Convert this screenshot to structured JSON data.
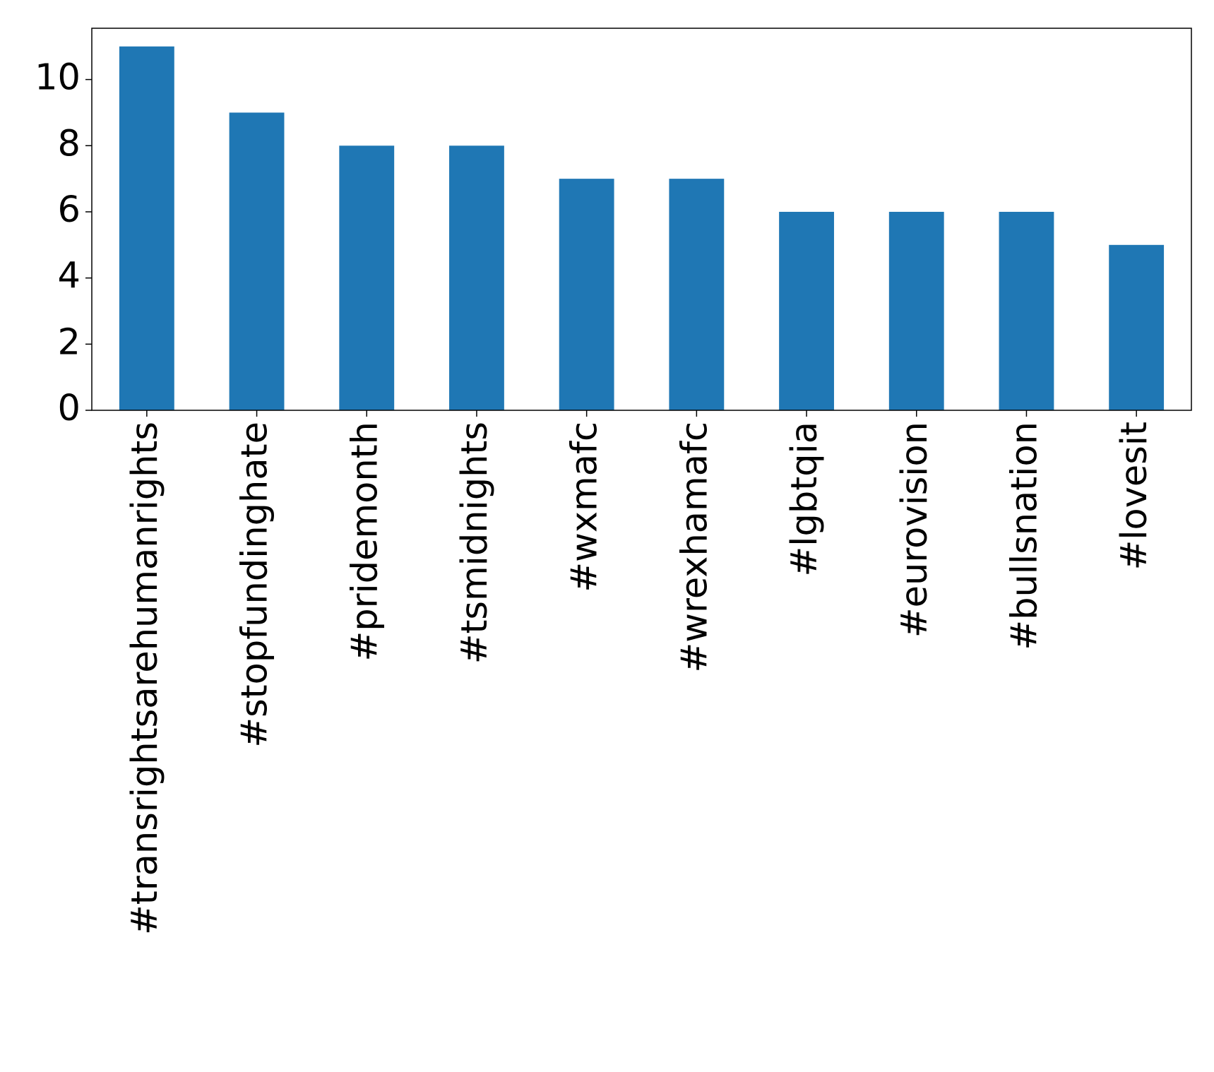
{
  "chart_data": {
    "type": "bar",
    "categories": [
      "#transrightsarehumanrights",
      "#stopfundinghate",
      "#pridemonth",
      "#tsmidnights",
      "#wxmafc",
      "#wrexhamafc",
      "#lgbtqia",
      "#eurovision",
      "#bullsnation",
      "#lovesit"
    ],
    "values": [
      11,
      9,
      8,
      8,
      7,
      7,
      6,
      6,
      6,
      5
    ],
    "color": "#1f77b4",
    "ylim": [
      0,
      11.55
    ],
    "yticks": [
      0,
      2,
      4,
      6,
      8,
      10
    ],
    "grid": false
  }
}
